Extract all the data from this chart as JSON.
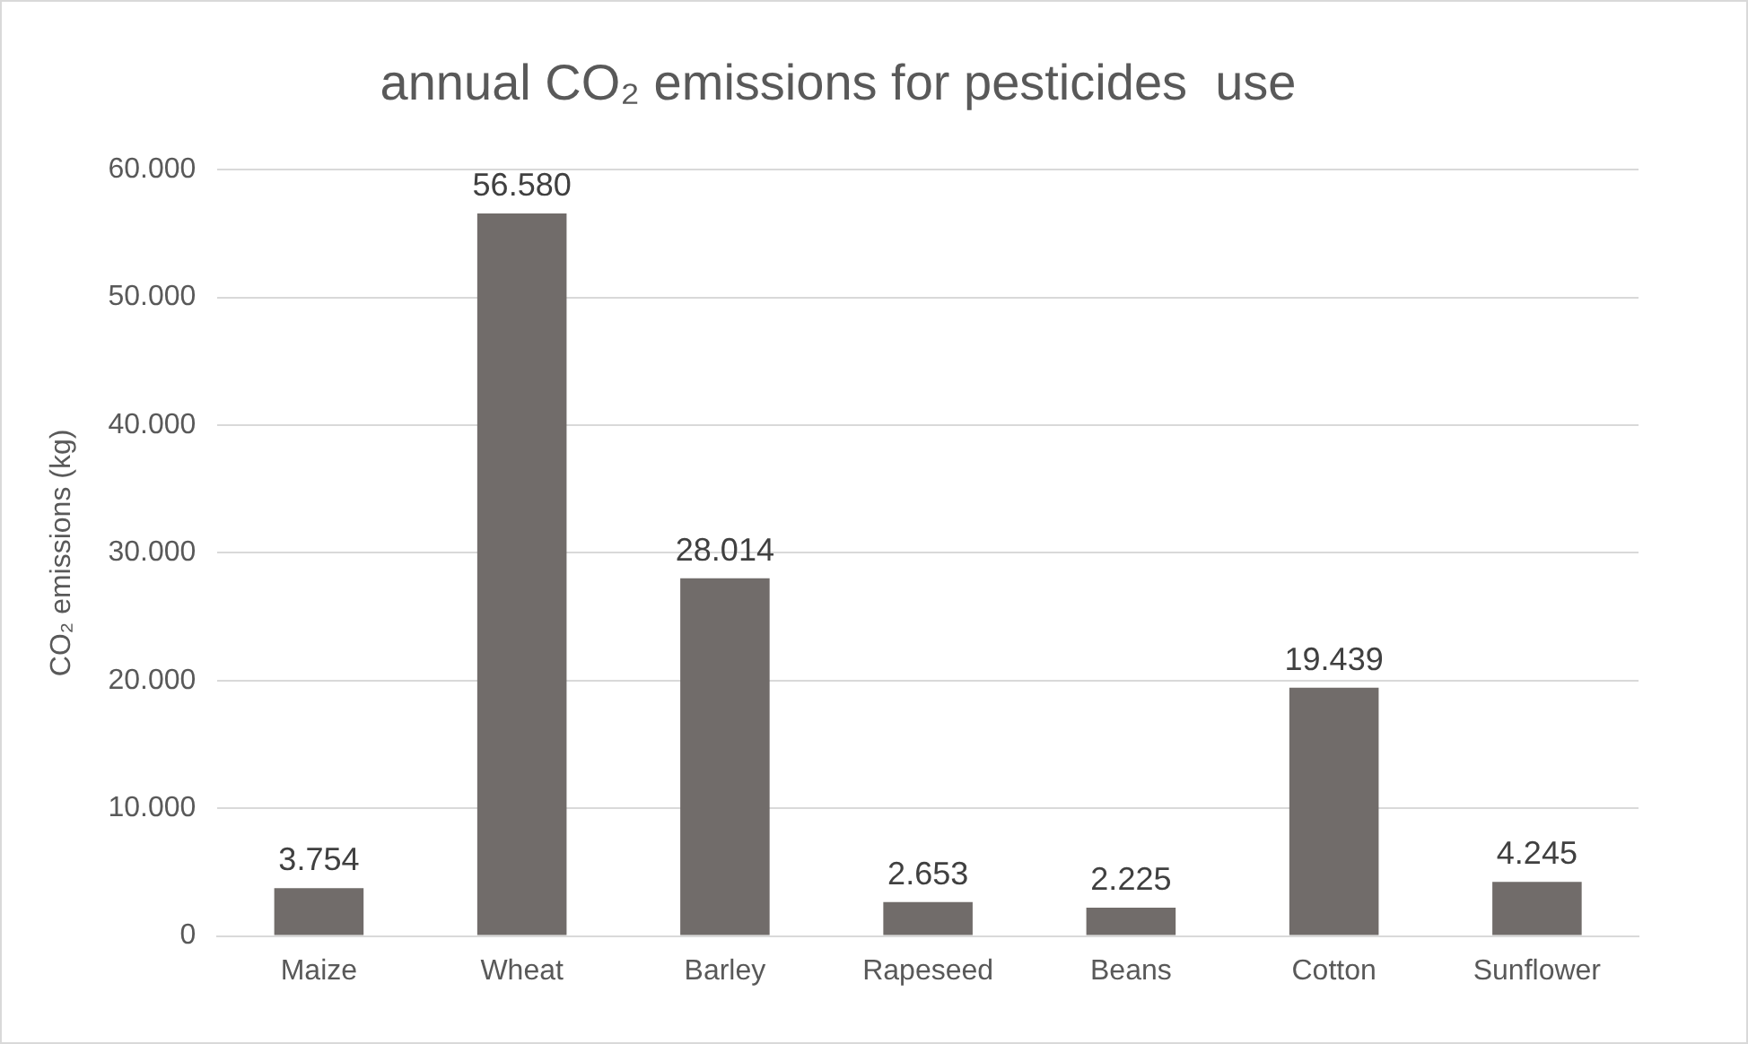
{
  "chart_data": {
    "type": "bar",
    "title": "annual CO₂ emissions for pesticides  use",
    "ylabel": "CO₂ emissions (kg)",
    "categories": [
      "Maize",
      "Wheat",
      "Barley",
      "Rapeseed",
      "Beans",
      "Cotton",
      "Sunflower"
    ],
    "values": [
      3754,
      56580,
      28014,
      2653,
      2225,
      19439,
      4245
    ],
    "value_labels": [
      "3.754",
      "56.580",
      "28.014",
      "2.653",
      "2.225",
      "19.439",
      "4.245"
    ],
    "color": "#716c6a",
    "ylim": [
      0,
      60000
    ],
    "yticks": [
      {
        "value": 0,
        "label": "0"
      },
      {
        "value": 10000,
        "label": "10.000"
      },
      {
        "value": 20000,
        "label": "20.000"
      },
      {
        "value": 30000,
        "label": "30.000"
      },
      {
        "value": 40000,
        "label": "40.000"
      },
      {
        "value": 50000,
        "label": "50.000"
      },
      {
        "value": 60000,
        "label": "60.000"
      }
    ],
    "grid": "y",
    "legend": false
  }
}
